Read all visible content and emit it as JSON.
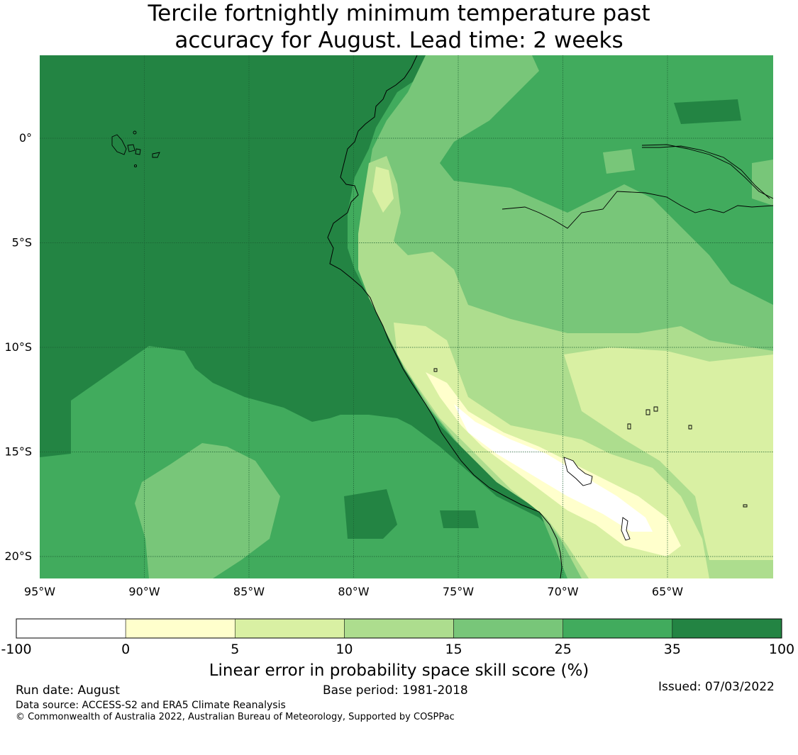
{
  "title_line1": "Tercile fortnightly minimum temperature past",
  "title_line2": "accuracy for August. Lead time: 2 weeks",
  "map": {
    "lon_range": [
      -95,
      -60
    ],
    "lat_range": [
      -21,
      4
    ],
    "lon_ticks": [
      {
        "value": -95,
        "label": "95°W"
      },
      {
        "value": -90,
        "label": "90°W"
      },
      {
        "value": -85,
        "label": "85°W"
      },
      {
        "value": -80,
        "label": "80°W"
      },
      {
        "value": -75,
        "label": "75°W"
      },
      {
        "value": -70,
        "label": "70°W"
      },
      {
        "value": -65,
        "label": "65°W"
      }
    ],
    "lat_ticks": [
      {
        "value": 0,
        "label": "0°"
      },
      {
        "value": -5,
        "label": "5°S"
      },
      {
        "value": -10,
        "label": "10°S"
      },
      {
        "value": -15,
        "label": "15°S"
      },
      {
        "value": -20,
        "label": "20°S"
      }
    ]
  },
  "colorbar": {
    "boundaries": [
      "-100",
      "0",
      "5",
      "10",
      "15",
      "25",
      "35",
      "100"
    ],
    "colors": [
      "#ffffff",
      "#ffffcc",
      "#d9f0a3",
      "#addd8e",
      "#78c679",
      "#41ab5d",
      "#238443"
    ],
    "label": "Linear error in probability space skill score (%)"
  },
  "footer": {
    "run_date": "Run date: August",
    "base_period": "Base period: 1981-2018",
    "issued": "Issued: 07/03/2022",
    "data_source": "Data source: ACCESS-S2 and ERA5 Climate Reanalysis",
    "copyright": "© Commonwealth of Australia 2022, Australian Bureau of Meteorology, Supported by COSPPac"
  }
}
